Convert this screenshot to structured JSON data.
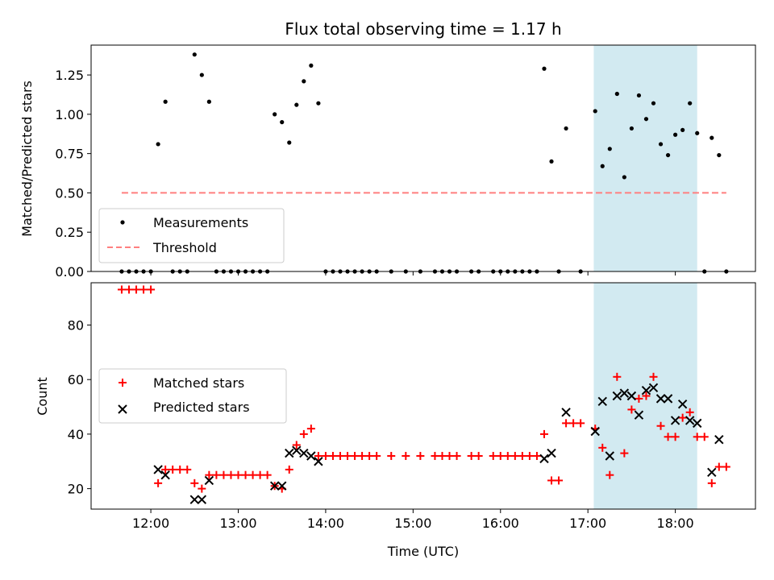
{
  "chart_data": [
    {
      "type": "scatter",
      "title": "Flux total observing time = 1.17 h",
      "xlabel": "",
      "ylabel": "Matched/Predicted stars",
      "ylim": [
        0,
        1.44
      ],
      "xlim": [
        "11:19",
        "18:55"
      ],
      "y_ticks": [
        "0.00",
        "0.25",
        "0.50",
        "0.75",
        "1.00",
        "1.25"
      ],
      "legend": {
        "placement": "lower-left",
        "entries": [
          "Measurements",
          "Threshold"
        ]
      },
      "shaded_span": {
        "x_start": "17:04",
        "x_end": "18:15",
        "color": "#add8e6"
      },
      "series": [
        {
          "name": "Measurements",
          "marker": "dot",
          "color": "#000000",
          "points": [
            [
              "11:40",
              0
            ],
            [
              "11:45",
              0
            ],
            [
              "11:50",
              0
            ],
            [
              "11:55",
              0
            ],
            [
              "12:00",
              0
            ],
            [
              "12:05",
              0.81
            ],
            [
              "12:10",
              1.08
            ],
            [
              "12:15",
              0
            ],
            [
              "12:20",
              0
            ],
            [
              "12:25",
              0
            ],
            [
              "12:30",
              1.38
            ],
            [
              "12:35",
              1.25
            ],
            [
              "12:40",
              1.08
            ],
            [
              "12:45",
              0
            ],
            [
              "12:50",
              0
            ],
            [
              "12:55",
              0
            ],
            [
              "13:00",
              0
            ],
            [
              "13:05",
              0
            ],
            [
              "13:10",
              0
            ],
            [
              "13:15",
              0
            ],
            [
              "13:20",
              0
            ],
            [
              "13:25",
              1.0
            ],
            [
              "13:30",
              0.95
            ],
            [
              "13:35",
              0.82
            ],
            [
              "13:40",
              1.06
            ],
            [
              "13:45",
              1.21
            ],
            [
              "13:50",
              1.31
            ],
            [
              "13:55",
              1.07
            ],
            [
              "14:00",
              0
            ],
            [
              "14:05",
              0
            ],
            [
              "14:10",
              0
            ],
            [
              "14:15",
              0
            ],
            [
              "14:20",
              0
            ],
            [
              "14:25",
              0
            ],
            [
              "14:30",
              0
            ],
            [
              "14:35",
              0
            ],
            [
              "14:45",
              0
            ],
            [
              "14:55",
              0
            ],
            [
              "15:05",
              0
            ],
            [
              "15:15",
              0
            ],
            [
              "15:20",
              0
            ],
            [
              "15:25",
              0
            ],
            [
              "15:30",
              0
            ],
            [
              "15:40",
              0
            ],
            [
              "15:45",
              0
            ],
            [
              "15:55",
              0
            ],
            [
              "16:00",
              0
            ],
            [
              "16:05",
              0
            ],
            [
              "16:10",
              0
            ],
            [
              "16:15",
              0
            ],
            [
              "16:20",
              0
            ],
            [
              "16:25",
              0
            ],
            [
              "16:30",
              1.29
            ],
            [
              "16:35",
              0.7
            ],
            [
              "16:40",
              0
            ],
            [
              "16:45",
              0.91
            ],
            [
              "16:55",
              0
            ],
            [
              "17:05",
              1.02
            ],
            [
              "17:10",
              0.67
            ],
            [
              "17:15",
              0.78
            ],
            [
              "17:20",
              1.13
            ],
            [
              "17:25",
              0.6
            ],
            [
              "17:30",
              0.91
            ],
            [
              "17:35",
              1.12
            ],
            [
              "17:40",
              0.97
            ],
            [
              "17:45",
              1.07
            ],
            [
              "17:50",
              0.81
            ],
            [
              "17:55",
              0.74
            ],
            [
              "18:00",
              0.87
            ],
            [
              "18:05",
              0.9
            ],
            [
              "18:10",
              1.07
            ],
            [
              "18:15",
              0.88
            ],
            [
              "18:20",
              0
            ],
            [
              "18:25",
              0.85
            ],
            [
              "18:30",
              0.74
            ],
            [
              "18:35",
              0
            ]
          ]
        },
        {
          "name": "Threshold",
          "marker": "dashed-line",
          "color": "#ff7f7f",
          "points": [
            [
              "11:40",
              0.5
            ],
            [
              "18:35",
              0.5
            ]
          ]
        }
      ]
    },
    {
      "type": "scatter",
      "title": "",
      "xlabel": "Time (UTC)",
      "ylabel": "Count",
      "ylim": [
        12.5,
        95.5
      ],
      "xlim": [
        "11:19",
        "18:55"
      ],
      "x_ticks": [
        "12:00",
        "13:00",
        "14:00",
        "15:00",
        "16:00",
        "17:00",
        "18:00"
      ],
      "y_ticks": [
        "20",
        "40",
        "60",
        "80"
      ],
      "legend": {
        "placement": "center-left",
        "entries": [
          "Matched stars",
          "Predicted stars"
        ]
      },
      "shaded_span": {
        "x_start": "17:04",
        "x_end": "18:15",
        "color": "#add8e6"
      },
      "series": [
        {
          "name": "Matched stars",
          "marker": "plus",
          "color": "#ff0000",
          "points": [
            [
              "11:40",
              93
            ],
            [
              "11:45",
              93
            ],
            [
              "11:50",
              93
            ],
            [
              "11:55",
              93
            ],
            [
              "12:00",
              93
            ],
            [
              "12:05",
              22
            ],
            [
              "12:10",
              27
            ],
            [
              "12:15",
              27
            ],
            [
              "12:20",
              27
            ],
            [
              "12:25",
              27
            ],
            [
              "12:30",
              22
            ],
            [
              "12:35",
              20
            ],
            [
              "12:40",
              25
            ],
            [
              "12:45",
              25
            ],
            [
              "12:50",
              25
            ],
            [
              "12:55",
              25
            ],
            [
              "13:00",
              25
            ],
            [
              "13:05",
              25
            ],
            [
              "13:10",
              25
            ],
            [
              "13:15",
              25
            ],
            [
              "13:20",
              25
            ],
            [
              "13:25",
              21
            ],
            [
              "13:30",
              20
            ],
            [
              "13:35",
              27
            ],
            [
              "13:40",
              36
            ],
            [
              "13:45",
              40
            ],
            [
              "13:50",
              42
            ],
            [
              "13:55",
              32
            ],
            [
              "14:00",
              32
            ],
            [
              "14:05",
              32
            ],
            [
              "14:10",
              32
            ],
            [
              "14:15",
              32
            ],
            [
              "14:20",
              32
            ],
            [
              "14:25",
              32
            ],
            [
              "14:30",
              32
            ],
            [
              "14:35",
              32
            ],
            [
              "14:45",
              32
            ],
            [
              "14:55",
              32
            ],
            [
              "15:05",
              32
            ],
            [
              "15:15",
              32
            ],
            [
              "15:20",
              32
            ],
            [
              "15:25",
              32
            ],
            [
              "15:30",
              32
            ],
            [
              "15:40",
              32
            ],
            [
              "15:45",
              32
            ],
            [
              "15:55",
              32
            ],
            [
              "16:00",
              32
            ],
            [
              "16:05",
              32
            ],
            [
              "16:10",
              32
            ],
            [
              "16:15",
              32
            ],
            [
              "16:20",
              32
            ],
            [
              "16:25",
              32
            ],
            [
              "16:30",
              40
            ],
            [
              "16:35",
              23
            ],
            [
              "16:40",
              23
            ],
            [
              "16:45",
              44
            ],
            [
              "16:50",
              44
            ],
            [
              "16:55",
              44
            ],
            [
              "17:05",
              42
            ],
            [
              "17:10",
              35
            ],
            [
              "17:15",
              25
            ],
            [
              "17:20",
              61
            ],
            [
              "17:25",
              33
            ],
            [
              "17:30",
              49
            ],
            [
              "17:35",
              53
            ],
            [
              "17:40",
              54
            ],
            [
              "17:45",
              61
            ],
            [
              "17:50",
              43
            ],
            [
              "17:55",
              39
            ],
            [
              "18:00",
              39
            ],
            [
              "18:05",
              46
            ],
            [
              "18:10",
              48
            ],
            [
              "18:15",
              39
            ],
            [
              "18:20",
              39
            ],
            [
              "18:25",
              22
            ],
            [
              "18:30",
              28
            ],
            [
              "18:35",
              28
            ]
          ]
        },
        {
          "name": "Predicted stars",
          "marker": "x",
          "color": "#000000",
          "points": [
            [
              "12:05",
              27
            ],
            [
              "12:10",
              25
            ],
            [
              "12:30",
              16
            ],
            [
              "12:35",
              16
            ],
            [
              "12:40",
              23
            ],
            [
              "13:25",
              21
            ],
            [
              "13:30",
              21
            ],
            [
              "13:35",
              33
            ],
            [
              "13:40",
              34
            ],
            [
              "13:45",
              33
            ],
            [
              "13:50",
              32
            ],
            [
              "13:55",
              30
            ],
            [
              "16:30",
              31
            ],
            [
              "16:35",
              33
            ],
            [
              "16:45",
              48
            ],
            [
              "17:05",
              41
            ],
            [
              "17:10",
              52
            ],
            [
              "17:15",
              32
            ],
            [
              "17:20",
              54
            ],
            [
              "17:25",
              55
            ],
            [
              "17:30",
              54
            ],
            [
              "17:35",
              47
            ],
            [
              "17:40",
              56
            ],
            [
              "17:45",
              57
            ],
            [
              "17:50",
              53
            ],
            [
              "17:55",
              53
            ],
            [
              "18:00",
              45
            ],
            [
              "18:05",
              51
            ],
            [
              "18:10",
              45
            ],
            [
              "18:15",
              44
            ],
            [
              "18:25",
              26
            ],
            [
              "18:30",
              38
            ]
          ]
        }
      ]
    }
  ]
}
